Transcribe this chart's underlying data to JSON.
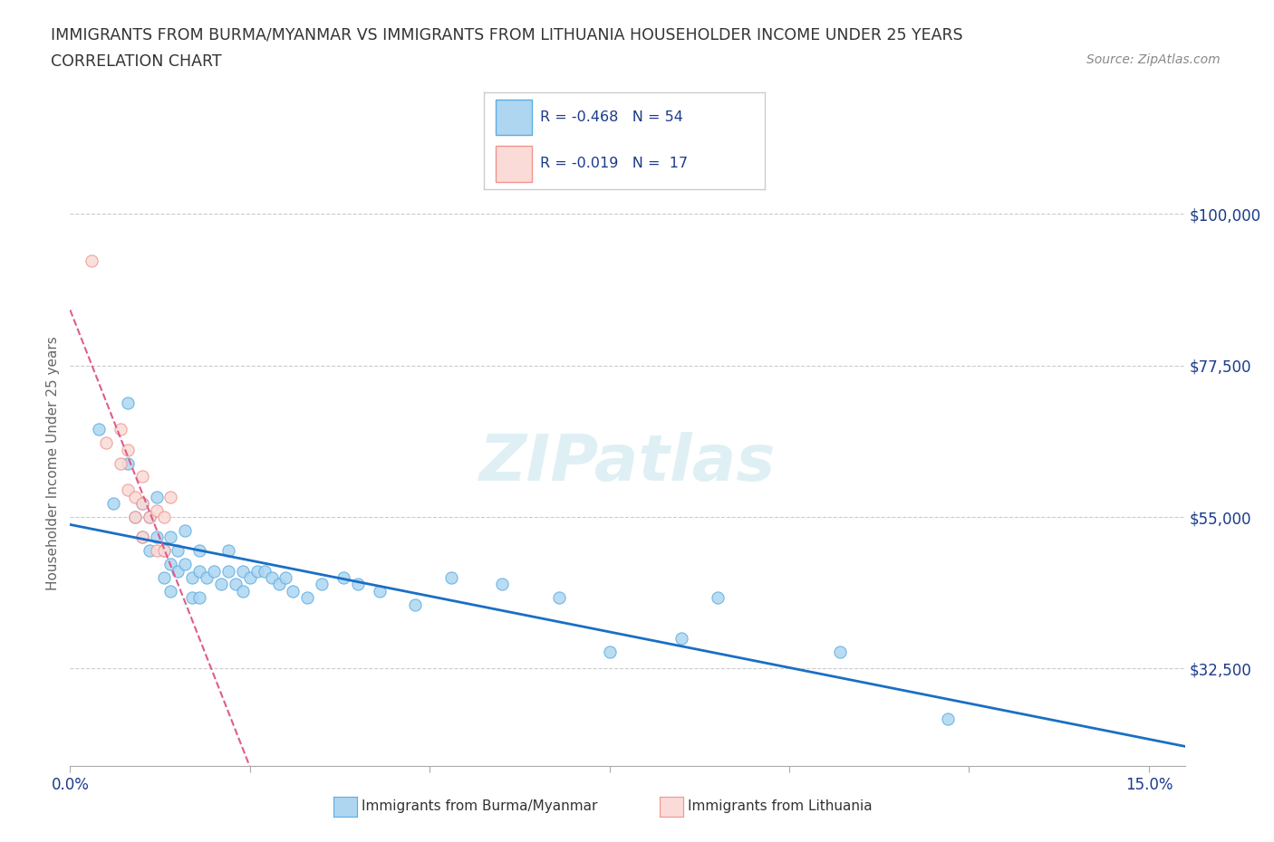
{
  "title_line1": "IMMIGRANTS FROM BURMA/MYANMAR VS IMMIGRANTS FROM LITHUANIA HOUSEHOLDER INCOME UNDER 25 YEARS",
  "title_line2": "CORRELATION CHART",
  "source_text": "Source: ZipAtlas.com",
  "ylabel": "Householder Income Under 25 years",
  "xlim": [
    0.0,
    0.155
  ],
  "ylim": [
    18000,
    108000
  ],
  "xtick_pos": [
    0.0,
    0.025,
    0.05,
    0.075,
    0.1,
    0.125,
    0.15
  ],
  "xtick_labels": [
    "0.0%",
    "",
    "",
    "",
    "",
    "",
    "15.0%"
  ],
  "ytick_positions": [
    32500,
    55000,
    77500,
    100000
  ],
  "ytick_labels": [
    "$32,500",
    "$55,000",
    "$77,500",
    "$100,000"
  ],
  "burma_color": "#AED6F1",
  "burma_edge": "#5DADE2",
  "lithuania_color": "#FADBD8",
  "lithuania_edge": "#F1948A",
  "trendline_burma_color": "#1A6FC4",
  "trendline_lithuania_color": "#E05C8A",
  "legend_text_color": "#1A3A8A",
  "watermark": "ZIPatlas",
  "burma_x": [
    0.004,
    0.006,
    0.008,
    0.008,
    0.009,
    0.01,
    0.01,
    0.011,
    0.011,
    0.012,
    0.012,
    0.013,
    0.013,
    0.014,
    0.014,
    0.014,
    0.015,
    0.015,
    0.016,
    0.016,
    0.017,
    0.017,
    0.018,
    0.018,
    0.018,
    0.019,
    0.02,
    0.021,
    0.022,
    0.022,
    0.023,
    0.024,
    0.024,
    0.025,
    0.026,
    0.027,
    0.028,
    0.029,
    0.03,
    0.031,
    0.033,
    0.035,
    0.038,
    0.04,
    0.043,
    0.048,
    0.053,
    0.06,
    0.068,
    0.075,
    0.085,
    0.09,
    0.107,
    0.122
  ],
  "burma_y": [
    68000,
    57000,
    63000,
    72000,
    55000,
    57000,
    52000,
    55000,
    50000,
    58000,
    52000,
    50000,
    46000,
    52000,
    48000,
    44000,
    50000,
    47000,
    53000,
    48000,
    46000,
    43000,
    50000,
    47000,
    43000,
    46000,
    47000,
    45000,
    50000,
    47000,
    45000,
    47000,
    44000,
    46000,
    47000,
    47000,
    46000,
    45000,
    46000,
    44000,
    43000,
    45000,
    46000,
    45000,
    44000,
    42000,
    46000,
    45000,
    43000,
    35000,
    37000,
    43000,
    35000,
    25000
  ],
  "lithuania_x": [
    0.003,
    0.005,
    0.007,
    0.008,
    0.008,
    0.009,
    0.009,
    0.01,
    0.01,
    0.011,
    0.012,
    0.012,
    0.013,
    0.013,
    0.014,
    0.007,
    0.01
  ],
  "lithuania_y": [
    93000,
    66000,
    63000,
    59000,
    65000,
    58000,
    55000,
    61000,
    57000,
    55000,
    50000,
    56000,
    55000,
    50000,
    58000,
    68000,
    52000
  ]
}
